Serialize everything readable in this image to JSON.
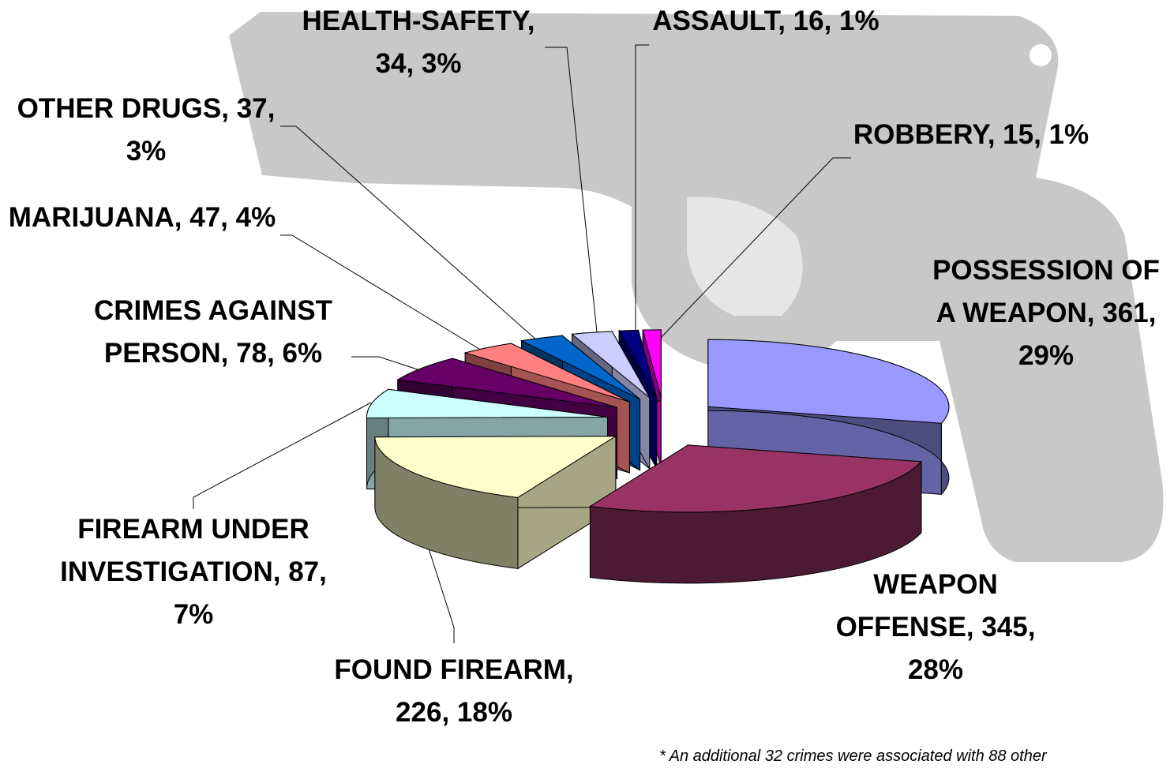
{
  "chart_data": {
    "type": "pie",
    "values": [
      361,
      345,
      226,
      87,
      78,
      47,
      37,
      34,
      16,
      15
    ],
    "value_labels": [
      "POSSESSION OF A WEAPON, 361, 29%",
      "WEAPON OFFENSE, 345, 28%",
      "FOUND FIREARM, 226, 18%",
      "FIREARM UNDER INVESTIGATION, 87, 7%",
      "CRIMES AGAINST PERSON, 78, 6%",
      "MARIJUANA, 47, 4%",
      "OTHER DRUGS, 37, 3%",
      "HEALTH-SAFETY, 34, 3%",
      "ASSAULT, 16, 1%",
      "ROBBERY, 15, 1%"
    ],
    "colors": [
      "#9999ff",
      "#993366",
      "#ffffcc",
      "#ccffff",
      "#660066",
      "#ff8080",
      "#0066cc",
      "#ccccff",
      "#000080",
      "#ff00ff"
    ],
    "footnote": "* An additional 32 crimes were associated with 88 other"
  }
}
